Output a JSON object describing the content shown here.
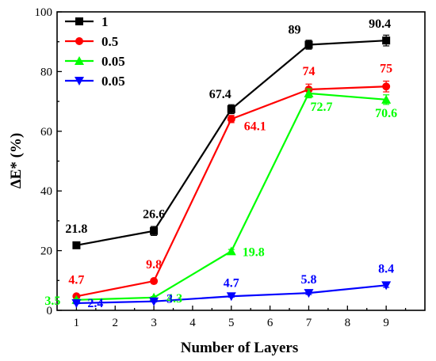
{
  "chart_data": {
    "type": "line",
    "xlabel": "Number of Layers",
    "ylabel": "ΔE* (%)",
    "xlim": [
      0.5,
      10
    ],
    "ylim": [
      0,
      100
    ],
    "xticks": [
      1,
      2,
      3,
      4,
      5,
      6,
      7,
      8,
      9
    ],
    "yticks": [
      0,
      20,
      40,
      60,
      80,
      100
    ],
    "legend_position": "top-left",
    "grid": false,
    "series": [
      {
        "name": "1",
        "color": "#000000",
        "marker": "square",
        "x": [
          1,
          3,
          5,
          7,
          9
        ],
        "values": [
          21.8,
          26.6,
          67.4,
          89,
          90.4
        ],
        "labels": [
          "21.8",
          "26.6",
          "67.4",
          "89",
          "90.4"
        ],
        "errors": [
          0.4,
          1.5,
          1.5,
          1.5,
          1.8
        ]
      },
      {
        "name": "0.5",
        "color": "#ff0000",
        "marker": "circle",
        "x": [
          1,
          3,
          5,
          7,
          9
        ],
        "values": [
          4.7,
          9.8,
          64.1,
          74,
          75
        ],
        "labels": [
          "4.7",
          "9.8",
          "64.1",
          "74",
          "75"
        ],
        "errors": [
          0.3,
          0.6,
          1.2,
          1.8,
          1.8
        ]
      },
      {
        "name": "0.05",
        "color": "#00ff00",
        "marker": "triangle-up",
        "x": [
          1,
          3,
          5,
          7,
          9
        ],
        "values": [
          3.5,
          4.3,
          19.8,
          72.7,
          70.6
        ],
        "labels": [
          "3.5",
          "4.3",
          "19.8",
          "72.7",
          "70.6"
        ],
        "errors": [
          0.3,
          0.3,
          0.6,
          1.5,
          1.6
        ]
      },
      {
        "name": "0.05",
        "color": "#0000ff",
        "marker": "triangle-down",
        "x": [
          1,
          3,
          5,
          7,
          9
        ],
        "values": [
          2.4,
          3,
          4.7,
          5.8,
          8.4
        ],
        "labels": [
          "2.4",
          "3",
          "4.7",
          "5.8",
          "8.4"
        ],
        "errors": [
          0.2,
          0.2,
          0.3,
          0.5,
          0.7
        ]
      }
    ]
  }
}
